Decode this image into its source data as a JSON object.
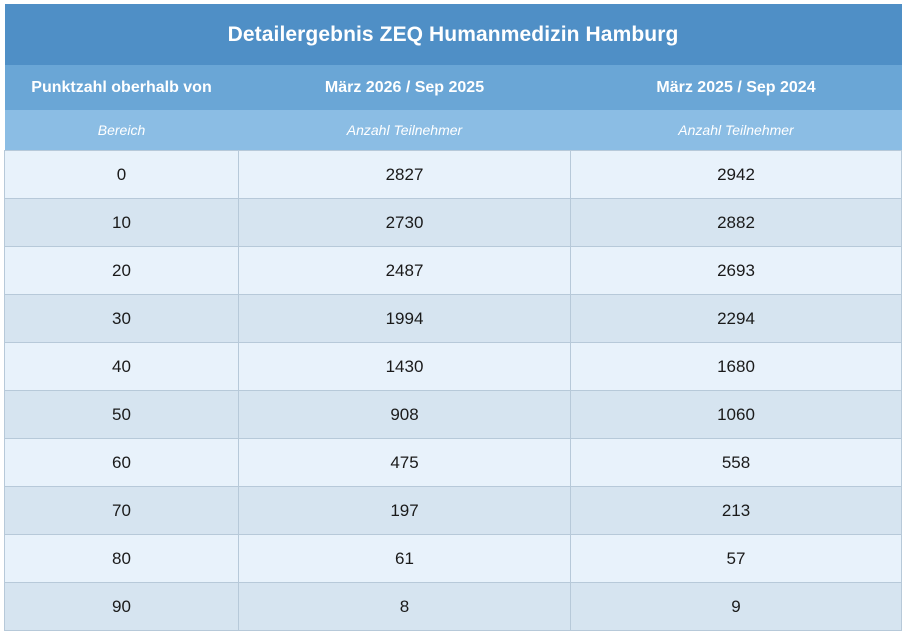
{
  "title": "Detailergebnis ZEQ Humanmedizin Hamburg",
  "headers": [
    "Punktzahl oberhalb von",
    "März 2026 / Sep 2025",
    "März 2025 / Sep 2024"
  ],
  "subheaders": [
    "Bereich",
    "Anzahl Teilnehmer",
    "Anzahl Teilnehmer"
  ],
  "rows": [
    [
      "0",
      "2827",
      "2942"
    ],
    [
      "10",
      "2730",
      "2882"
    ],
    [
      "20",
      "2487",
      "2693"
    ],
    [
      "30",
      "1994",
      "2294"
    ],
    [
      "40",
      "1430",
      "1680"
    ],
    [
      "50",
      "908",
      "1060"
    ],
    [
      "60",
      "475",
      "558"
    ],
    [
      "70",
      "197",
      "213"
    ],
    [
      "80",
      "61",
      "57"
    ],
    [
      "90",
      "8",
      "9"
    ]
  ],
  "colors": {
    "title_bg": "#4f8fc6",
    "header_bg": "#6aa6d6",
    "subheader_bg": "#8bbde4",
    "row_light": "#e8f2fb",
    "row_dark": "#d6e4f0"
  }
}
